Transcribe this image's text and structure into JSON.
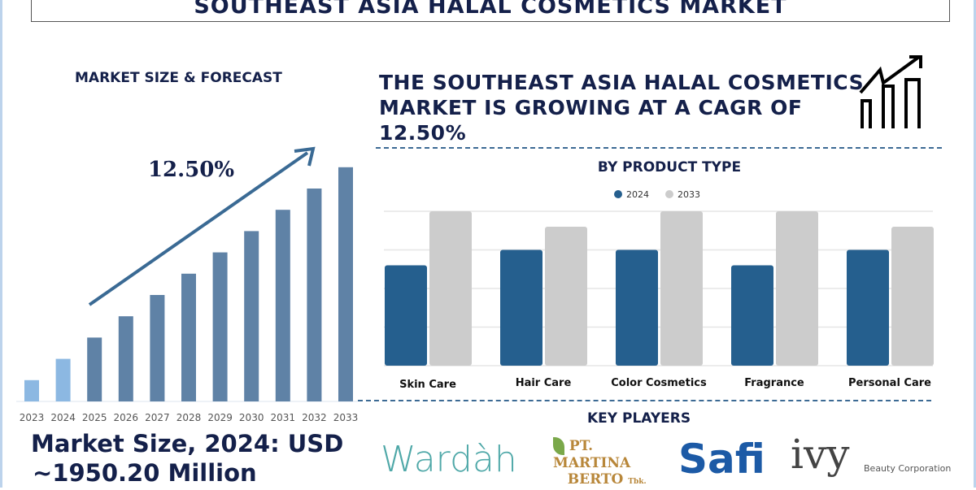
{
  "header": {
    "title": "SOUTHEAST ASIA HALAL COSMETICS MARKET"
  },
  "left": {
    "heading": "MARKET SIZE & FORECAST",
    "cagr_label": "12.50%",
    "market_size_line1": "Market Size, 2024: USD",
    "market_size_line2": "~1950.20 Million"
  },
  "right": {
    "headline_line1": "THE SOUTHEAST ASIA HALAL COSMETICS",
    "headline_line2": "MARKET IS GROWING AT A CAGR OF",
    "headline_line3": "12.50%",
    "icon": "growth-chart-icon"
  },
  "key_players": {
    "heading": "KEY PLAYERS",
    "logos": [
      "Wardàh",
      "PT. MARTINA BERTO Tbk.",
      "Safi",
      "ivy Beauty Corporation"
    ]
  },
  "colors": {
    "navy": "#14204a",
    "bar_2024": "#255f8e",
    "bar_2033": "#cccccc",
    "forecast_bar": "#5f82a6",
    "historic_bar": "#8cb8e2",
    "arrow": "#3a6a94"
  },
  "chart_data": [
    {
      "type": "bar",
      "title": "MARKET SIZE & FORECAST",
      "categories": [
        "2023",
        "2024",
        "2025",
        "2026",
        "2027",
        "2028",
        "2029",
        "2030",
        "2031",
        "2032",
        "2033"
      ],
      "values": [
        1,
        2,
        3,
        4,
        5,
        6,
        7,
        8,
        9,
        10,
        11
      ],
      "annotation": "12.50%",
      "grid": false
    },
    {
      "type": "bar",
      "title": "BY PRODUCT TYPE",
      "categories": [
        "Skin Care",
        "Hair Care",
        "Color Cosmetics",
        "Fragrance",
        "Personal Care"
      ],
      "series": [
        {
          "name": "2024",
          "values": [
            2.6,
            3.0,
            3.0,
            2.6,
            3.0
          ]
        },
        {
          "name": "2033",
          "values": [
            4.0,
            3.6,
            4.0,
            4.0,
            3.6
          ]
        }
      ],
      "ylim": [
        0,
        4
      ],
      "grid": true,
      "legend": "top-center"
    }
  ]
}
